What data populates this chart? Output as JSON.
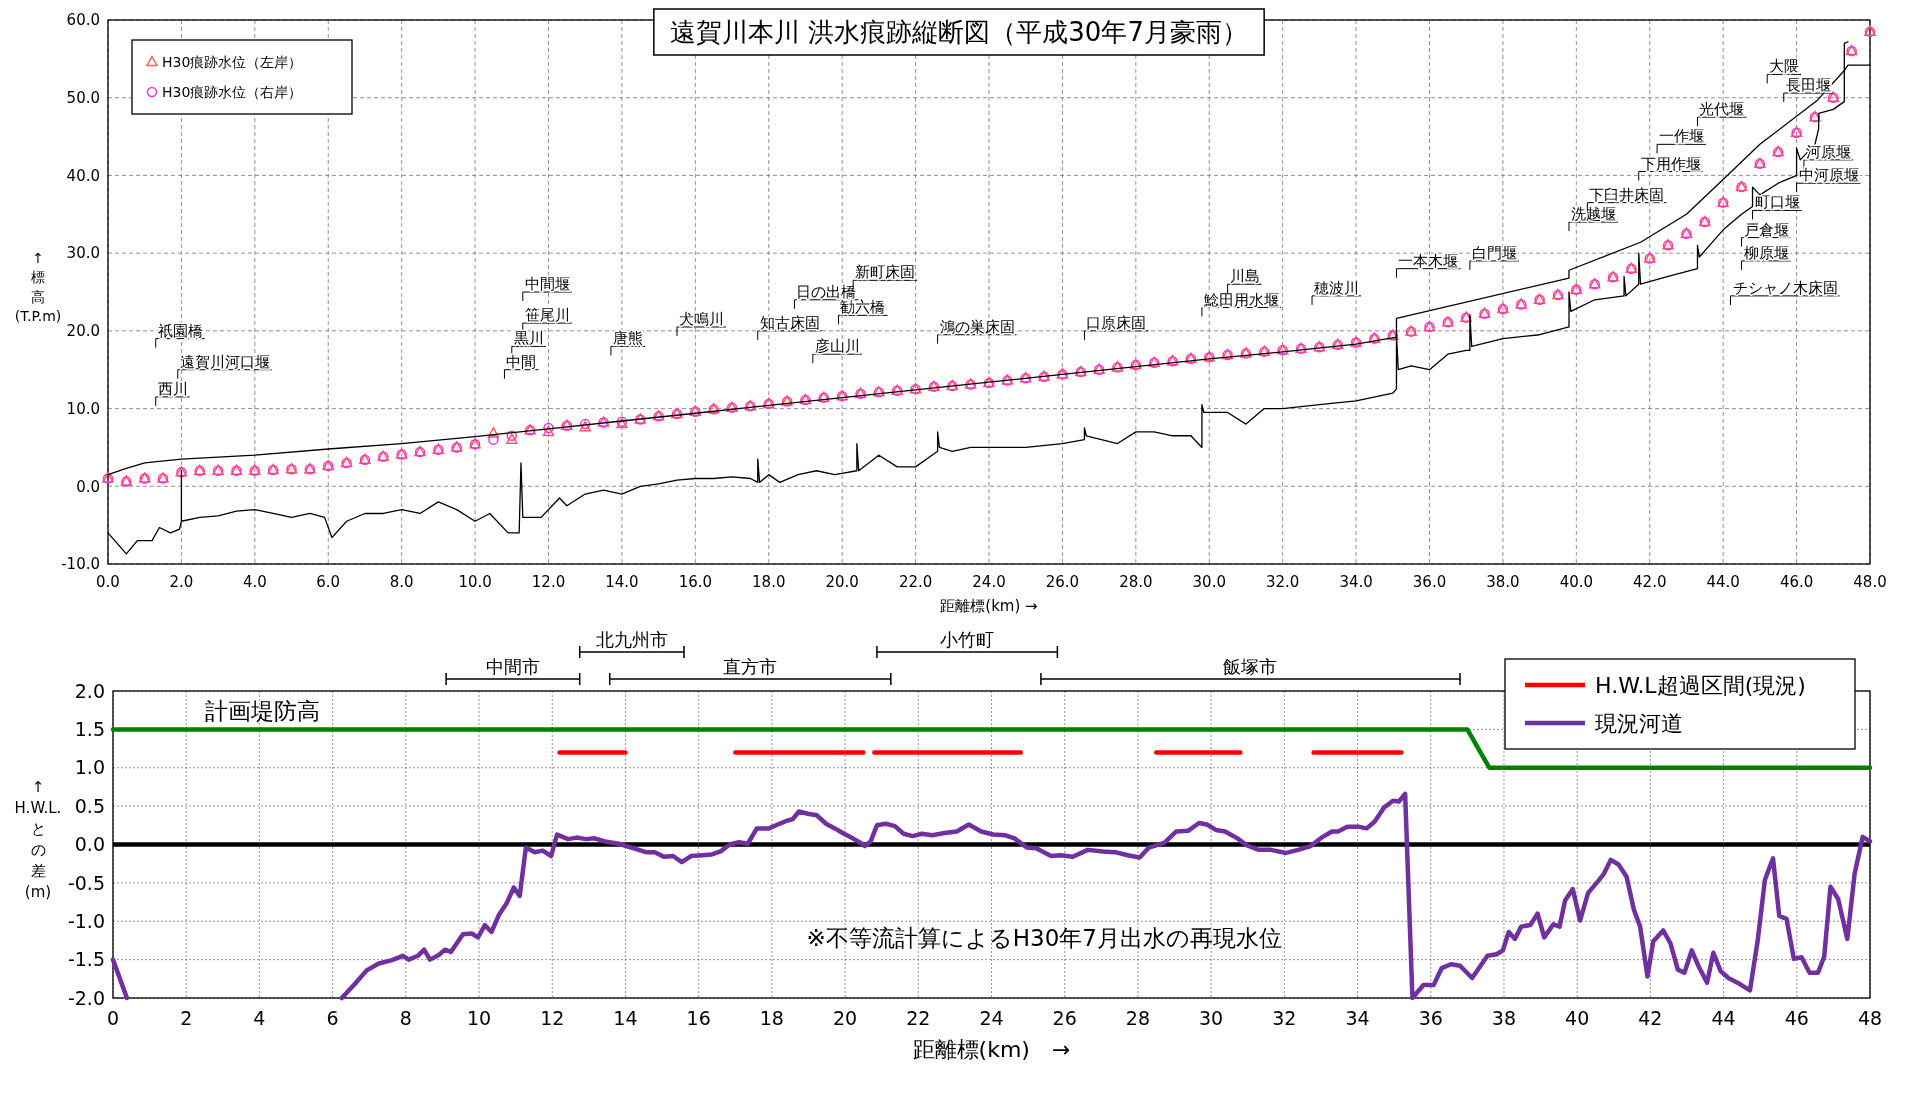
{
  "chart_data": [
    {
      "type": "line",
      "title": "遠賀川本川 洪水痕跡縦断図（平成30年7月豪雨）",
      "xlabel": "距離標(km) →",
      "ylabel": "↑標高(T.P.m)",
      "xlim": [
        0,
        48
      ],
      "ylim": [
        -10,
        60
      ],
      "xticks": [
        {
          "value": 0,
          "label": "0.0"
        },
        {
          "value": 2,
          "label": "2.0"
        },
        {
          "value": 4,
          "label": "4.0"
        },
        {
          "value": 6,
          "label": "6.0"
        },
        {
          "value": 8,
          "label": "8.0"
        },
        {
          "value": 10,
          "label": "10.0"
        },
        {
          "value": 12,
          "label": "12.0"
        },
        {
          "value": 14,
          "label": "14.0"
        },
        {
          "value": 16,
          "label": "16.0"
        },
        {
          "value": 18,
          "label": "18.0"
        },
        {
          "value": 20,
          "label": "20.0"
        },
        {
          "value": 22,
          "label": "22.0"
        },
        {
          "value": 24,
          "label": "24.0"
        },
        {
          "value": 26,
          "label": "26.0"
        },
        {
          "value": 28,
          "label": "28.0"
        },
        {
          "value": 30,
          "label": "30.0"
        },
        {
          "value": 32,
          "label": "32.0"
        },
        {
          "value": 34,
          "label": "34.0"
        },
        {
          "value": 36,
          "label": "36.0"
        },
        {
          "value": 38,
          "label": "38.0"
        },
        {
          "value": 40,
          "label": "40.0"
        },
        {
          "value": 42,
          "label": "42.0"
        },
        {
          "value": 44,
          "label": "44.0"
        },
        {
          "value": 46,
          "label": "46.0"
        },
        {
          "value": 48,
          "label": "48.0"
        }
      ],
      "yticks": [
        {
          "value": -10,
          "label": "-10.0"
        },
        {
          "value": 0,
          "label": "0.0"
        },
        {
          "value": 10,
          "label": "10.0"
        },
        {
          "value": 20,
          "label": "20.0"
        },
        {
          "value": 30,
          "label": "30.0"
        },
        {
          "value": 40,
          "label": "40.0"
        },
        {
          "value": 50,
          "label": "50.0"
        },
        {
          "value": 60,
          "label": "60.0"
        }
      ],
      "grid": true,
      "legend": "top left",
      "series": [
        {
          "color": "#000000",
          "x": [
            0,
            0.5,
            1,
            2,
            4,
            6,
            8,
            10,
            12,
            14,
            16,
            18,
            20,
            22,
            24,
            26,
            28,
            30,
            32,
            34,
            35.1,
            35.1,
            39.8,
            39.8,
            41.75,
            43,
            44.07,
            45,
            46.55,
            47.3,
            47.3,
            47.4
          ],
          "values": [
            1.5,
            2.3,
            3.0,
            3.5,
            4.0,
            4.8,
            5.5,
            6.4,
            7.4,
            8.4,
            9.4,
            10.4,
            11.4,
            12.4,
            13.4,
            14.4,
            15.4,
            16.4,
            17.3,
            18.3,
            19.2,
            21.6,
            26.8,
            27.8,
            31.4,
            35.0,
            39.8,
            44.0,
            49.6,
            53.5,
            57.0,
            57.2
          ]
        },
        {
          "color": "#000000",
          "x": [
            0,
            0.5,
            0.8,
            1.2,
            1.4,
            1.7,
            1.95,
            2.0,
            2.0,
            2.0,
            2.5,
            3.0,
            3.5,
            4.0,
            4.5,
            5.0,
            5.5,
            5.9,
            6.1,
            6.5,
            7.0,
            7.5,
            8.0,
            8.5,
            9.0,
            9.5,
            10.0,
            10.4,
            10.9,
            11.2,
            11.25,
            11.3,
            11.8,
            12.3,
            12.5,
            13.0,
            13.5,
            14.0,
            14.5,
            15.0,
            15.5,
            16.0,
            16.5,
            17.0,
            17.5,
            17.7,
            17.7,
            17.75,
            18.0,
            18.3,
            18.8,
            19.3,
            19.8,
            20.4,
            20.4,
            20.45,
            21.0,
            21.5,
            22.0,
            22.6,
            22.6,
            22.65,
            23.0,
            23.5,
            24.0,
            25.0,
            26.0,
            26.6,
            26.6,
            26.65,
            27.5,
            28.0,
            28.5,
            29.0,
            29.5,
            29.8,
            29.8,
            29.85,
            30.5,
            31.0,
            31.5,
            32.0,
            33.0,
            34.0,
            35.0,
            35.1,
            35.1,
            35.15,
            35.5,
            36.0,
            36.5,
            37.0,
            37.1,
            37.1,
            37.15,
            38.0,
            39.0,
            39.8,
            39.8,
            39.85,
            40.5,
            41.3,
            41.3,
            41.35,
            41.7,
            41.7,
            41.75,
            42.5,
            43.3,
            43.3,
            43.35,
            44.0,
            44.5,
            44.8,
            44.8,
            45.0,
            45.5,
            46.0,
            46.0,
            46.1,
            46.5,
            46.6,
            46.6,
            47.0,
            47.3,
            47.3,
            47.4,
            48.0
          ],
          "values": [
            -6,
            -8.7,
            -7,
            -7,
            -5.3,
            -6,
            -5.5,
            -4.5,
            2.0,
            -4.5,
            -4.0,
            -3.8,
            -3.2,
            -3.0,
            -3.5,
            -4.0,
            -3.5,
            -4.0,
            -6.6,
            -4.5,
            -3.5,
            -3.5,
            -3.0,
            -3.5,
            -2.0,
            -3.0,
            -4.5,
            -3.5,
            -6.0,
            -6.0,
            3.0,
            -4.0,
            -4.0,
            -1.5,
            -2.5,
            -1.0,
            -0.5,
            -1.0,
            0.0,
            0.3,
            0.8,
            1.0,
            1.0,
            1.2,
            1.0,
            0.5,
            3.5,
            0.5,
            1.5,
            0.5,
            1.5,
            2.0,
            1.5,
            2.0,
            5.5,
            2.0,
            4.0,
            2.5,
            2.5,
            4.5,
            7.0,
            5.0,
            4.5,
            5.0,
            5.0,
            5.0,
            5.5,
            6.0,
            7.5,
            6.5,
            5.5,
            7.0,
            7.0,
            6.5,
            6.5,
            5.0,
            10.5,
            9.5,
            9.5,
            8.0,
            10.0,
            10.0,
            10.5,
            11.0,
            12.0,
            12.5,
            19.5,
            15.0,
            15.5,
            15.0,
            17.0,
            17.5,
            17.5,
            22.0,
            18.0,
            19.0,
            19.5,
            20.5,
            25.0,
            22.5,
            24.0,
            24.5,
            27.0,
            24.5,
            26.0,
            30.0,
            26.0,
            27.0,
            28.0,
            31.0,
            29.5,
            33.0,
            35.0,
            36.0,
            38.5,
            37.5,
            39.0,
            40.0,
            43.5,
            42.0,
            44.0,
            46.0,
            48.0,
            48.5,
            49.5,
            53.5,
            54.2,
            54.2
          ]
        },
        {
          "type": "scatter",
          "name": "H30痕跡水位（左岸）",
          "color": "#ff5a5a",
          "marker": "triangle",
          "x": [
            0,
            0.5,
            1,
            1.5,
            2,
            2.5,
            3,
            3.5,
            4,
            4.5,
            5,
            5.5,
            6,
            6.5,
            7,
            7.5,
            8,
            8.5,
            9,
            9.5,
            10,
            10.5,
            11,
            11.5,
            12,
            12.5,
            13,
            13.5,
            14,
            14.5,
            15,
            15.5,
            16,
            16.5,
            17,
            17.5,
            18,
            18.5,
            19,
            19.5,
            20,
            20.5,
            21,
            21.5,
            22,
            22.5,
            23,
            23.5,
            24,
            24.5,
            25,
            25.5,
            26,
            26.5,
            27,
            27.5,
            28,
            28.5,
            29,
            29.5,
            30,
            30.5,
            31,
            31.5,
            32,
            32.5,
            33,
            33.5,
            34,
            34.5,
            35,
            35.5,
            36,
            36.5,
            37,
            37.5,
            38,
            38.5,
            39,
            39.5,
            40,
            40.5,
            41,
            41.5,
            42,
            42.5,
            43,
            43.5,
            44,
            44.5,
            45,
            45.5,
            46,
            46.5,
            47,
            47.5,
            48
          ],
          "values": [
            1.0,
            0.6,
            1.0,
            1.0,
            1.8,
            2.0,
            2.0,
            2.0,
            2.0,
            2.1,
            2.2,
            2.2,
            2.6,
            3.0,
            3.4,
            3.8,
            4.1,
            4.4,
            4.7,
            5.0,
            5.4,
            6.8,
            6.0,
            7.2,
            7.0,
            7.8,
            7.6,
            8.2,
            8.0,
            8.6,
            9.0,
            9.3,
            9.6,
            9.9,
            10.1,
            10.3,
            10.6,
            10.9,
            11.1,
            11.4,
            11.6,
            11.9,
            12.1,
            12.3,
            12.5,
            12.8,
            12.9,
            13.1,
            13.3,
            13.6,
            13.9,
            14.1,
            14.4,
            14.7,
            15.0,
            15.3,
            15.6,
            15.9,
            16.1,
            16.4,
            16.6,
            16.9,
            17.1,
            17.3,
            17.5,
            17.7,
            17.9,
            18.2,
            18.5,
            19.0,
            19.4,
            19.9,
            20.5,
            21.1,
            21.7,
            22.2,
            22.8,
            23.4,
            24.0,
            24.6,
            25.3,
            26.0,
            26.9,
            28.0,
            29.3,
            31.0,
            32.5,
            34.0,
            36.5,
            38.5,
            41.5,
            43.0,
            45.5,
            47.5,
            50.0,
            56.0,
            58.5
          ]
        },
        {
          "type": "scatter",
          "name": "H30痕跡水位（右岸）",
          "color": "#ff33cc",
          "marker": "circle",
          "x": [
            0,
            0.5,
            1,
            1.5,
            2,
            2.5,
            3,
            3.5,
            4,
            4.5,
            5,
            5.5,
            6,
            6.5,
            7,
            7.5,
            8,
            8.5,
            9,
            9.5,
            10,
            10.5,
            11,
            11.5,
            12,
            12.5,
            13,
            13.5,
            14,
            14.5,
            15,
            15.5,
            16,
            16.5,
            17,
            17.5,
            18,
            18.5,
            19,
            19.5,
            20,
            20.5,
            21,
            21.5,
            22,
            22.5,
            23,
            23.5,
            24,
            24.5,
            25,
            25.5,
            26,
            26.5,
            27,
            27.5,
            28,
            28.5,
            29,
            29.5,
            30,
            30.5,
            31,
            31.5,
            32,
            32.5,
            33,
            33.5,
            34,
            34.5,
            35,
            35.5,
            36,
            36.5,
            37,
            37.5,
            38,
            38.5,
            39,
            39.5,
            40,
            40.5,
            41,
            41.5,
            42,
            42.5,
            43,
            43.5,
            44,
            44.5,
            45,
            45.5,
            46,
            46.5,
            47,
            47.5,
            48
          ],
          "values": [
            1.0,
            0.6,
            1.0,
            1.0,
            1.8,
            2.0,
            2.0,
            2.0,
            2.0,
            2.1,
            2.2,
            2.2,
            2.6,
            3.0,
            3.4,
            3.8,
            4.1,
            4.4,
            4.7,
            5.0,
            5.4,
            6.0,
            6.5,
            7.2,
            7.5,
            7.8,
            8.0,
            8.2,
            8.3,
            8.6,
            9.0,
            9.3,
            9.6,
            9.9,
            10.1,
            10.3,
            10.6,
            10.9,
            11.1,
            11.4,
            11.6,
            11.9,
            12.1,
            12.3,
            12.5,
            12.8,
            12.9,
            13.1,
            13.3,
            13.6,
            13.9,
            14.1,
            14.4,
            14.7,
            15.0,
            15.3,
            15.6,
            15.9,
            16.1,
            16.4,
            16.6,
            16.9,
            17.1,
            17.3,
            17.5,
            17.7,
            17.9,
            18.2,
            18.5,
            19.0,
            19.4,
            19.9,
            20.5,
            21.1,
            21.7,
            22.2,
            22.8,
            23.4,
            24.0,
            24.6,
            25.3,
            26.0,
            26.9,
            28.0,
            29.3,
            31.0,
            32.5,
            34.0,
            36.5,
            38.5,
            41.5,
            43.0,
            45.5,
            47.5,
            50.0,
            56.0,
            58.5
          ]
        }
      ],
      "annotations": [
        "祇園橋",
        "遠賀川河口堰",
        "西川",
        "中間堰",
        "笹尾川",
        "黒川",
        "中間",
        "唐熊",
        "犬鳴川",
        "知古床固",
        "日の出橋",
        "勧六橋",
        "彦山川",
        "新町床固",
        "鴻の巣床固",
        "口原床固",
        "鯰田用水堰",
        "川島",
        "穂波川",
        "一本木堰",
        "白門堰",
        "洗越堰",
        "下臼井床固",
        "下用作堰",
        "一作堰",
        "光代堰",
        "大隈",
        "長田堰",
        "河原堰",
        "中河原堰",
        "町口堰",
        "戸倉堰",
        "柳原堰",
        "チシャノ木床固"
      ]
    },
    {
      "type": "line",
      "xlabel": "距離標(km)　→",
      "ylabel": "↑H.W.L.との差(m)",
      "xlim": [
        0,
        48
      ],
      "ylim": [
        -2,
        2
      ],
      "xticks": [
        0,
        2,
        4,
        6,
        8,
        10,
        12,
        14,
        16,
        18,
        20,
        22,
        24,
        26,
        28,
        30,
        32,
        34,
        36,
        38,
        40,
        42,
        44,
        46,
        48
      ],
      "yticks": [
        {
          "value": -2,
          "label": "-2.0"
        },
        {
          "value": -1.5,
          "label": "-1.5"
        },
        {
          "value": -1,
          "label": "-1.0"
        },
        {
          "value": -0.5,
          "label": "-0.5"
        },
        {
          "value": 0,
          "label": "0.0"
        },
        {
          "value": 0.5,
          "label": "0.5"
        },
        {
          "value": 1,
          "label": "1.0"
        },
        {
          "value": 1.5,
          "label": "1.5"
        },
        {
          "value": 2,
          "label": "2.0"
        }
      ],
      "grid": true,
      "legend": "top right",
      "series": [
        {
          "color": "#008000",
          "x": [
            0,
            37.0,
            37.6,
            48
          ],
          "values": [
            1.5,
            1.5,
            1.0,
            1.0
          ]
        },
        {
          "name": "H.W.L超過区間(現況)",
          "color": "#ff0000",
          "x": [
            12.2,
            14.0,
            15.5,
            17.0,
            20.5,
            20.65,
            20.8,
            24.8,
            26.5,
            28.5,
            30.8,
            31.8,
            32.8,
            35.2
          ],
          "values": [
            1.2,
            1.2,
            null,
            1.2,
            1.2,
            null,
            1.2,
            1.2,
            null,
            1.2,
            1.2,
            null,
            1.2,
            1.2
          ]
        },
        {
          "name": "現況河道",
          "color": "#7030a0",
          "x": [
            0,
            0.38,
            3.3,
            6.25,
            6.6,
            6.93,
            7.26,
            7.6,
            7.92,
            8.08,
            8.33,
            8.5,
            8.66,
            8.9,
            9.07,
            9.23,
            9.56,
            9.8,
            9.97,
            10.16,
            10.34,
            10.54,
            10.75,
            10.95,
            11.11,
            11.28,
            11.52,
            11.74,
            11.97,
            12.13,
            12.43,
            12.67,
            12.92,
            13.16,
            13.44,
            13.82,
            14.23,
            14.56,
            14.8,
            15.05,
            15.3,
            15.54,
            15.79,
            16.11,
            16.36,
            16.6,
            16.85,
            17.1,
            17.34,
            17.59,
            17.92,
            18.16,
            18.41,
            18.57,
            18.74,
            18.98,
            19.23,
            19.48,
            19.72,
            19.97,
            20.21,
            20.46,
            20.54,
            20.7,
            20.87,
            21.11,
            21.36,
            21.6,
            21.85,
            22.1,
            22.38,
            22.72,
            23.05,
            23.38,
            23.72,
            24.05,
            24.38,
            24.63,
            24.97,
            25.22,
            25.63,
            25.88,
            26.22,
            26.63,
            27.05,
            27.38,
            27.72,
            28.05,
            28.3,
            28.72,
            29.05,
            29.38,
            29.67,
            29.88,
            30.13,
            30.38,
            30.72,
            30.97,
            31.3,
            31.63,
            32.05,
            32.38,
            32.72,
            33.05,
            33.3,
            33.47,
            33.72,
            34.05,
            34.25,
            34.47,
            34.72,
            34.97,
            35.13,
            35.3,
            35.5,
            35.8,
            36.08,
            36.3,
            36.55,
            36.8,
            37.13,
            37.55,
            37.8,
            37.97,
            38.13,
            38.3,
            38.47,
            38.72,
            38.92,
            39.1,
            39.35,
            39.52,
            39.67,
            39.88,
            40.08,
            40.3,
            40.55,
            40.72,
            40.92,
            41.13,
            41.35,
            41.55,
            41.72,
            41.92,
            42.08,
            42.35,
            42.55,
            42.75,
            42.93,
            43.13,
            43.33,
            43.55,
            43.72,
            43.92,
            44.13,
            44.38,
            44.72,
            44.93,
            45.13,
            45.35,
            45.52,
            45.72,
            45.92,
            46.13,
            46.35,
            46.58,
            46.75,
            46.92,
            47.13,
            47.38,
            47.58,
            47.8,
            48.0
          ],
          "values": [
            -1.5,
            -2.0,
            null,
            -2.0,
            -1.82,
            -1.64,
            -1.55,
            -1.51,
            -1.45,
            -1.5,
            -1.45,
            -1.37,
            -1.5,
            -1.44,
            -1.37,
            -1.4,
            -1.17,
            -1.16,
            -1.21,
            -1.05,
            -1.14,
            -0.92,
            -0.77,
            -0.56,
            -0.67,
            -0.04,
            -0.1,
            -0.08,
            -0.15,
            0.13,
            0.07,
            0.09,
            0.07,
            0.08,
            0.04,
            0.01,
            -0.05,
            -0.1,
            -0.1,
            -0.16,
            -0.15,
            -0.23,
            -0.15,
            -0.14,
            -0.13,
            -0.09,
            0.0,
            0.03,
            0.01,
            0.21,
            0.21,
            0.26,
            0.31,
            0.33,
            0.43,
            0.4,
            0.38,
            0.27,
            0.21,
            0.14,
            0.08,
            0.01,
            -0.02,
            0.04,
            0.25,
            0.27,
            0.24,
            0.14,
            0.11,
            0.14,
            0.12,
            0.15,
            0.17,
            0.26,
            0.17,
            0.13,
            0.12,
            0.08,
            -0.04,
            -0.05,
            -0.15,
            -0.14,
            -0.16,
            -0.07,
            -0.09,
            -0.1,
            -0.14,
            -0.17,
            -0.04,
            0.02,
            0.17,
            0.18,
            0.28,
            0.26,
            0.19,
            0.17,
            0.08,
            -0.01,
            -0.07,
            -0.07,
            -0.11,
            -0.07,
            -0.02,
            0.1,
            0.17,
            0.17,
            0.23,
            0.23,
            0.21,
            0.3,
            0.48,
            0.57,
            0.56,
            0.66,
            -2.0,
            -1.83,
            -1.83,
            -1.61,
            -1.56,
            -1.58,
            -1.74,
            -1.45,
            -1.43,
            -1.38,
            -1.14,
            -1.23,
            -1.07,
            -1.05,
            -0.9,
            -1.21,
            -1.04,
            -1.07,
            -0.73,
            -0.58,
            -0.99,
            -0.63,
            -0.49,
            -0.39,
            -0.2,
            -0.26,
            -0.42,
            -0.85,
            -1.07,
            -1.72,
            -1.26,
            -1.12,
            -1.29,
            -1.63,
            -1.67,
            -1.38,
            -1.6,
            -1.8,
            -1.41,
            -1.65,
            -1.74,
            -1.8,
            -1.9,
            -1.26,
            -0.46,
            -0.18,
            -0.93,
            -0.97,
            -1.49,
            -1.47,
            -1.67,
            -1.67,
            -1.46,
            -0.55,
            -0.71,
            -1.23,
            -0.38,
            0.1,
            0.04
          ]
        }
      ],
      "ref_lines": [
        {
          "axis": "y",
          "value": 0,
          "color": "#000000"
        }
      ],
      "annotations": [
        {
          "text": "計画堤防高",
          "x": 2.5,
          "y": 1.5
        },
        "※不等流計算によるH30年7月出水の再現水位",
        "中間市",
        "北九州市",
        "直方市",
        "小竹町",
        "飯塚市"
      ]
    }
  ]
}
